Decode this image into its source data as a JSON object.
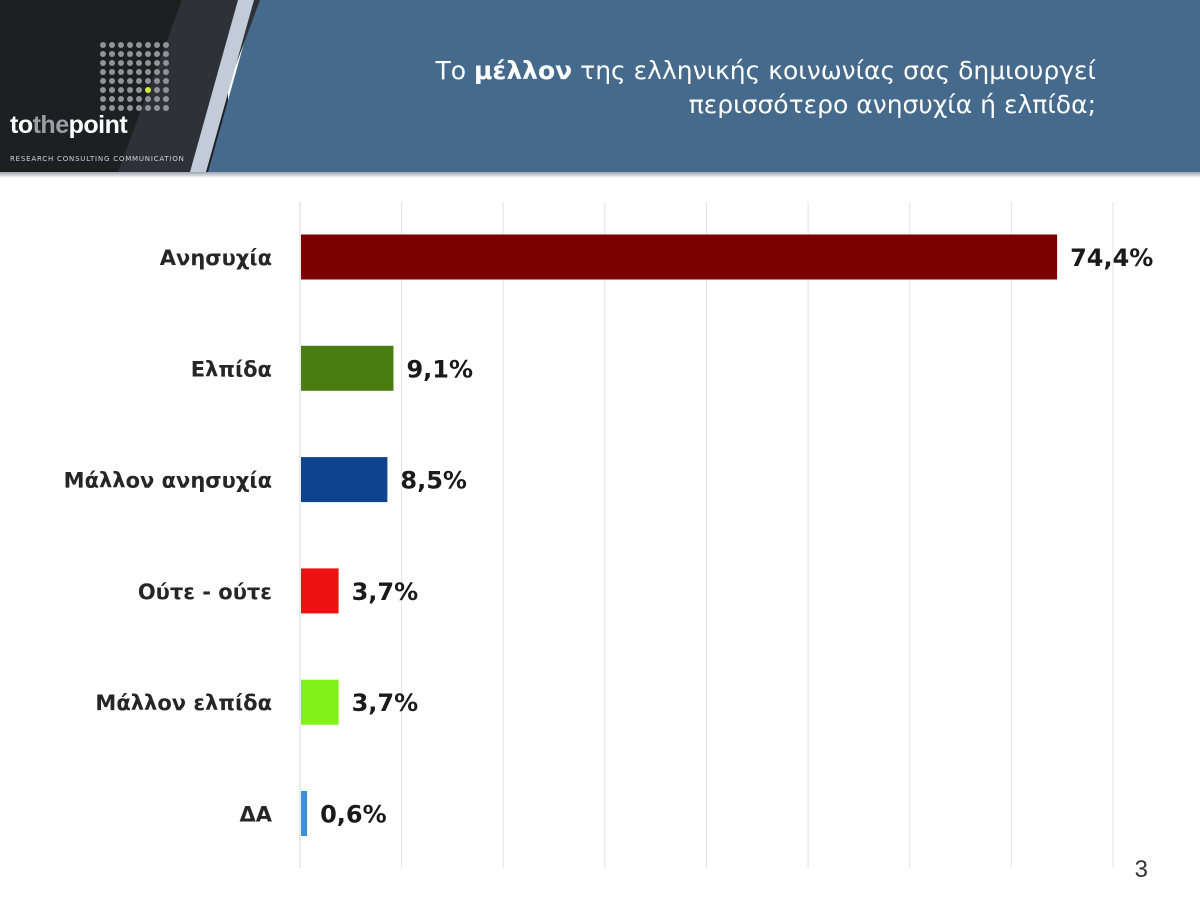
{
  "header": {
    "logo": {
      "wordmark_prefix": "to",
      "wordmark_middle": "the",
      "wordmark_suffix": "point",
      "tagline": "RESEARCH CONSULTING COMMUNICATION"
    },
    "title_prefix": "Το ",
    "title_emphasis": "μέλλον",
    "title_line1_rest": " της ελληνικής κοινωνίας σας δημιουργεί",
    "title_line2": "περισσότερο ανησυχία ή ελπίδα;"
  },
  "page_number": "3",
  "colors": {
    "header_band": "#456a8b",
    "logo_dot_accent": "#d6e93a"
  },
  "chart_data": {
    "type": "bar",
    "orientation": "horizontal",
    "categories": [
      "Ανησυχία",
      "Ελπίδα",
      "Μάλλον ανησυχία",
      "Ούτε - ούτε",
      "Μάλλον ελπίδα",
      "ΔΑ"
    ],
    "values": [
      74.4,
      9.1,
      8.5,
      3.7,
      3.7,
      0.6
    ],
    "value_labels": [
      "74,4%",
      "9,1%",
      "8,5%",
      "3,7%",
      "3,7%",
      "0,6%"
    ],
    "colors": [
      "#7b0000",
      "#4a7d11",
      "#0e4390",
      "#ee1111",
      "#80f21a",
      "#3d8fd6"
    ],
    "xlim": [
      0,
      80
    ],
    "grid": true,
    "legend": "none"
  }
}
